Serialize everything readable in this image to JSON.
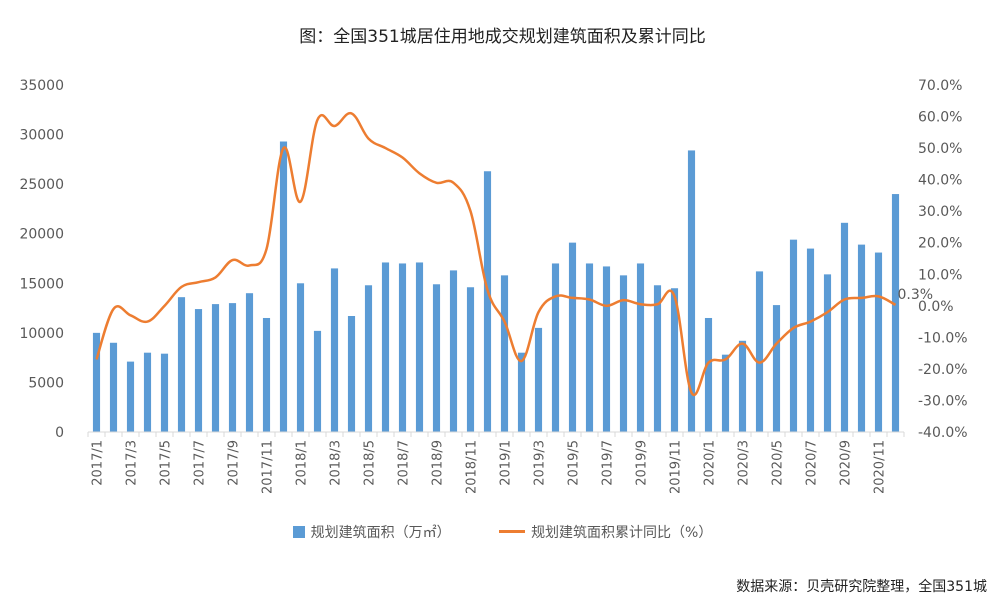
{
  "chart_data": {
    "type": "bar+line",
    "title": "图：全国351城居住用地成交规划建筑面积及累计同比",
    "categories": [
      "2017/1",
      "2017/2",
      "2017/3",
      "2017/4",
      "2017/5",
      "2017/6",
      "2017/7",
      "2017/8",
      "2017/9",
      "2017/10",
      "2017/11",
      "2017/12",
      "2018/1",
      "2018/2",
      "2018/3",
      "2018/4",
      "2018/5",
      "2018/6",
      "2018/7",
      "2018/8",
      "2018/9",
      "2018/10",
      "2018/11",
      "2018/12",
      "2019/1",
      "2019/2",
      "2019/3",
      "2019/4",
      "2019/5",
      "2019/6",
      "2019/7",
      "2019/8",
      "2019/9",
      "2019/10",
      "2019/11",
      "2019/12",
      "2020/1",
      "2020/2",
      "2020/3",
      "2020/4",
      "2020/5",
      "2020/6",
      "2020/7",
      "2020/8",
      "2020/9",
      "2020/10",
      "2020/11",
      "2020/12"
    ],
    "x_tick_labels": [
      "2017/1",
      "2017/3",
      "2017/5",
      "2017/7",
      "2017/9",
      "2017/11",
      "2018/1",
      "2018/3",
      "2018/5",
      "2018/7",
      "2018/9",
      "2018/11",
      "2019/1",
      "2019/3",
      "2019/5",
      "2019/7",
      "2019/9",
      "2019/11",
      "2020/1",
      "2020/3",
      "2020/5",
      "2020/7",
      "2020/9",
      "2020/11"
    ],
    "series": [
      {
        "name": "规划建筑面积（万㎡）",
        "type": "bar",
        "axis": "left",
        "color": "#5B9BD5",
        "values": [
          10000,
          9000,
          7100,
          8000,
          7900,
          13600,
          12400,
          12900,
          13000,
          14000,
          11500,
          29300,
          15000,
          10200,
          16500,
          11700,
          14800,
          17100,
          17000,
          17100,
          14900,
          16300,
          14600,
          26300,
          15800,
          8000,
          10500,
          17000,
          19100,
          17000,
          16700,
          15800,
          17000,
          14800,
          14500,
          28400,
          11500,
          7800,
          9200,
          16200,
          12800,
          19400,
          18500,
          15900,
          21100,
          18900,
          18100,
          24000
        ]
      },
      {
        "name": "规划建筑面积累计同比（%）",
        "type": "line",
        "axis": "right",
        "color": "#ED7D31",
        "values": [
          -17,
          -1,
          -3,
          -5,
          0,
          6,
          7.5,
          9,
          14.5,
          12.8,
          18,
          50,
          33,
          59,
          57,
          61,
          53,
          50,
          47,
          42,
          39,
          39,
          30,
          5,
          -5,
          -17.5,
          -2,
          3,
          2.5,
          2,
          0,
          1.8,
          0.5,
          0.5,
          3,
          -27.5,
          -18,
          -17,
          -12,
          -18,
          -12,
          -7,
          -5,
          -2,
          2,
          2.5,
          3,
          0.3
        ]
      }
    ],
    "y_left": {
      "min": 0,
      "max": 35000,
      "ticks": [
        "0",
        "5000",
        "10000",
        "15000",
        "20000",
        "25000",
        "30000",
        "35000"
      ]
    },
    "y_right": {
      "min": -40,
      "max": 70,
      "ticks": [
        "-40.0%",
        "-30.0%",
        "-20.0%",
        "-10.0%",
        "0.0%",
        "10.0%",
        "20.0%",
        "30.0%",
        "40.0%",
        "50.0%",
        "60.0%",
        "70.0%"
      ]
    },
    "annotation": {
      "text": "0.3%"
    },
    "legend": {
      "position": "bottom"
    },
    "grid": false
  },
  "source": "数据来源：贝壳研究院整理，全国351城"
}
